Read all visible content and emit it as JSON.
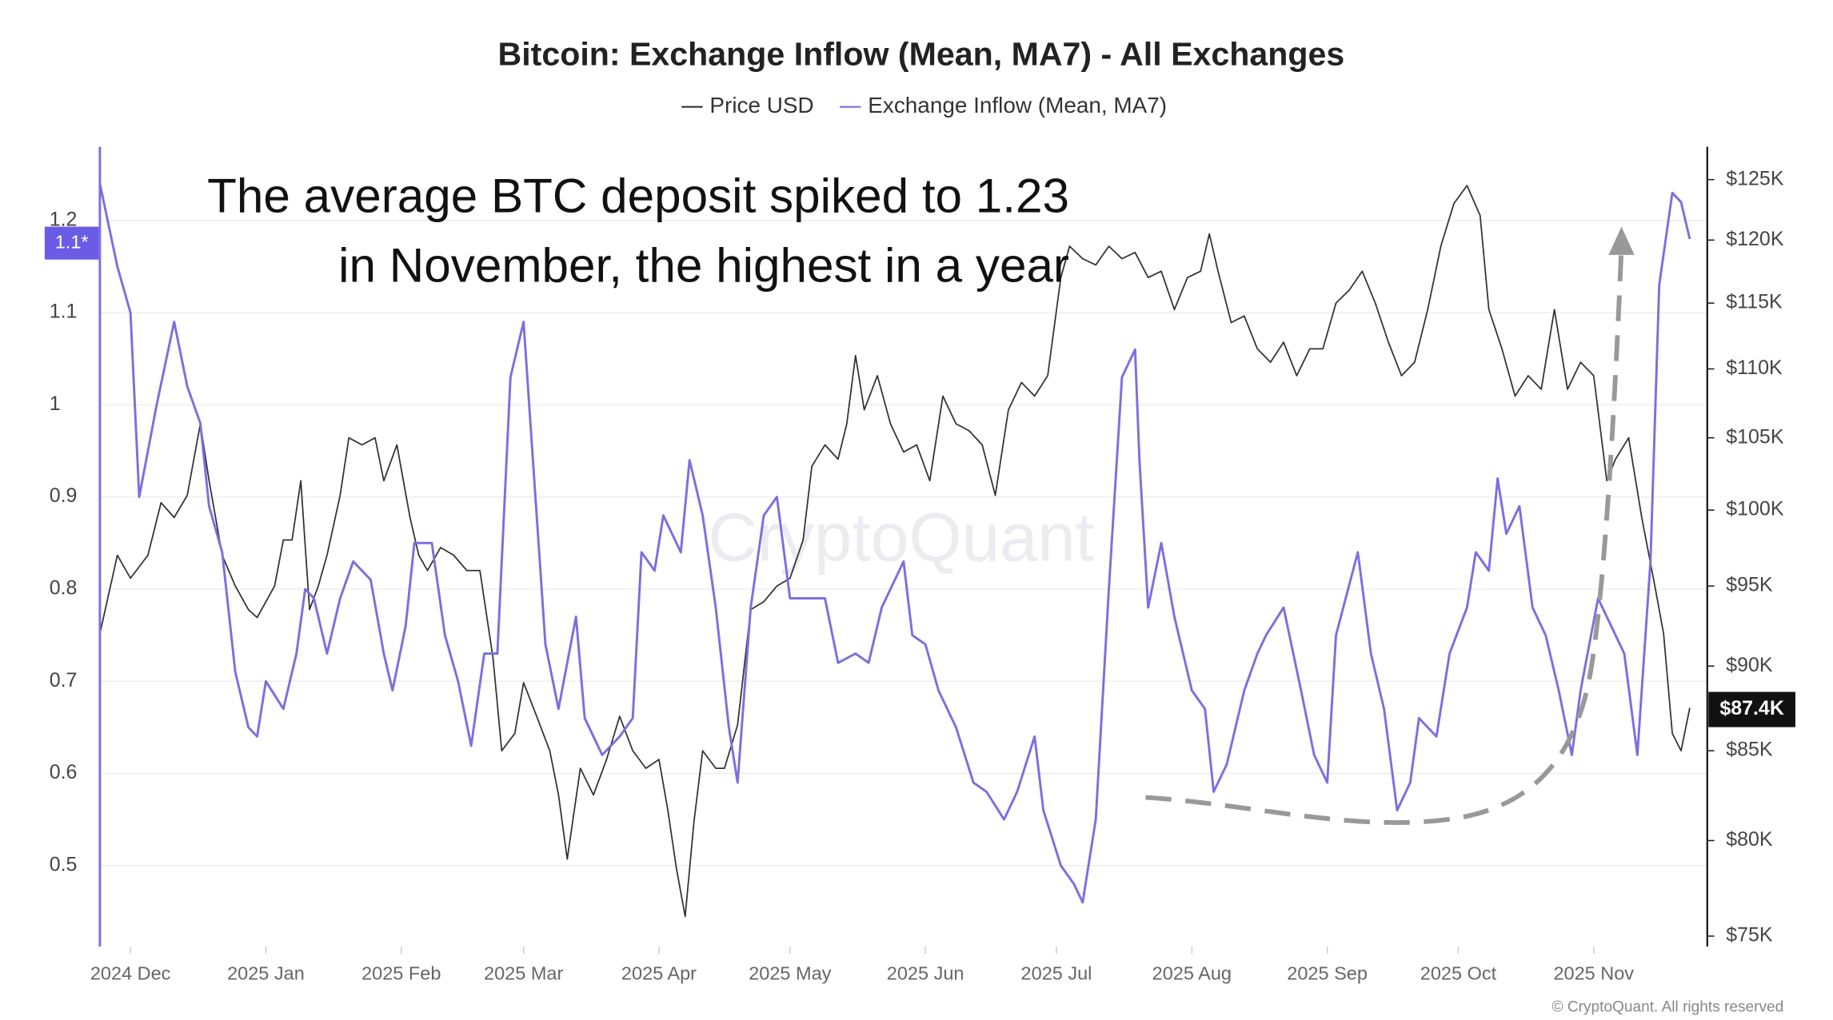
{
  "chart_data": {
    "type": "line",
    "title": "Bitcoin: Exchange Inflow (Mean, MA7) - All Exchanges",
    "annotation_lines": [
      "The average BTC deposit spiked to 1.23",
      "in November, the highest in a year"
    ],
    "watermark": "CryptoQuant",
    "credit": "© CryptoQuant. All rights reserved",
    "left_badge": "1.1*",
    "last_price_label": {
      "value": 87400,
      "label": "$87.4K"
    },
    "xlim": [
      0,
      368
    ],
    "xticks": [
      {
        "value": 7,
        "label": "2024 Dec"
      },
      {
        "value": 38,
        "label": "2025 Jan"
      },
      {
        "value": 69,
        "label": "2025 Feb"
      },
      {
        "value": 97,
        "label": "2025 Mar"
      },
      {
        "value": 128,
        "label": "2025 Apr"
      },
      {
        "value": 158,
        "label": "2025 May"
      },
      {
        "value": 189,
        "label": "2025 Jun"
      },
      {
        "value": 219,
        "label": "2025 Jul"
      },
      {
        "value": 250,
        "label": "2025 Aug"
      },
      {
        "value": 281,
        "label": "2025 Sep"
      },
      {
        "value": 311,
        "label": "2025 Oct"
      },
      {
        "value": 342,
        "label": "2025 Nov"
      }
    ],
    "ylim": [
      0.412,
      1.28
    ],
    "yticks": [
      0.5,
      0.6,
      0.7,
      0.8,
      0.9,
      1,
      1.1,
      1.2
    ],
    "y2lim": [
      74470,
      127800
    ],
    "y2log": true,
    "y2ticks": [
      {
        "value": 75000,
        "label": "$75K"
      },
      {
        "value": 80000,
        "label": "$80K"
      },
      {
        "value": 85000,
        "label": "$85K"
      },
      {
        "value": 90000,
        "label": "$90K"
      },
      {
        "value": 95000,
        "label": "$95K"
      },
      {
        "value": 100000,
        "label": "$100K"
      },
      {
        "value": 105000,
        "label": "$105K"
      },
      {
        "value": 110000,
        "label": "$110K"
      },
      {
        "value": 115000,
        "label": "$115K"
      },
      {
        "value": 120000,
        "label": "$120K"
      },
      {
        "value": 125000,
        "label": "$125K"
      }
    ],
    "grid": true,
    "series": [
      {
        "name": "Price USD",
        "color": "#333333",
        "axis": "y2",
        "x": [
          0,
          4,
          7,
          11,
          14,
          17,
          20,
          23,
          25,
          28,
          31,
          34,
          36,
          40,
          42,
          44,
          46,
          48,
          50,
          52,
          55,
          57,
          60,
          63,
          65,
          68,
          71,
          73,
          75,
          78,
          81,
          84,
          87,
          90,
          92,
          95,
          97,
          100,
          103,
          105,
          107,
          110,
          113,
          116,
          119,
          122,
          125,
          128,
          130,
          132,
          134,
          136,
          138,
          141,
          143,
          146,
          149,
          152,
          155,
          158,
          161,
          163,
          166,
          169,
          171,
          173,
          175,
          178,
          181,
          184,
          187,
          190,
          193,
          196,
          199,
          202,
          205,
          208,
          211,
          214,
          217,
          220,
          222,
          225,
          228,
          231,
          234,
          237,
          240,
          243,
          246,
          249,
          252,
          254,
          256,
          259,
          262,
          265,
          268,
          271,
          274,
          277,
          280,
          283,
          286,
          289,
          292,
          295,
          298,
          301,
          304,
          307,
          310,
          313,
          316,
          318,
          321,
          324,
          327,
          330,
          333,
          336,
          339,
          342,
          345,
          347,
          350,
          353,
          356,
          358,
          360,
          362,
          364
        ],
        "values": [
          92000,
          97000,
          95500,
          97000,
          100500,
          99500,
          101000,
          106000,
          102000,
          97000,
          95000,
          93500,
          93000,
          95000,
          98000,
          98000,
          102000,
          93500,
          95000,
          97000,
          101000,
          105000,
          104500,
          105000,
          102000,
          104500,
          99500,
          97000,
          96000,
          97500,
          97000,
          96000,
          96000,
          90500,
          85000,
          86000,
          89000,
          87000,
          85000,
          82500,
          79000,
          84000,
          82500,
          84500,
          87000,
          85000,
          84000,
          84500,
          81700,
          78500,
          76000,
          81000,
          85000,
          84000,
          84000,
          86500,
          93500,
          94000,
          95000,
          95500,
          98000,
          103000,
          104500,
          103500,
          106000,
          111000,
          107000,
          109500,
          106000,
          104000,
          104500,
          102000,
          108000,
          106000,
          105500,
          104500,
          101000,
          107000,
          109000,
          108000,
          109500,
          117000,
          119500,
          118500,
          118000,
          119500,
          118500,
          119000,
          117000,
          117500,
          114500,
          117000,
          117500,
          120500,
          117500,
          113500,
          114000,
          111500,
          110500,
          112000,
          109500,
          111500,
          111500,
          115000,
          116000,
          117500,
          115000,
          112000,
          109500,
          110500,
          114500,
          119500,
          123000,
          124500,
          122000,
          114500,
          111500,
          108000,
          109500,
          108500,
          114500,
          108500,
          110500,
          109500,
          102000,
          103500,
          105000,
          99500,
          95000,
          92000,
          86000,
          85000,
          87500
        ]
      },
      {
        "name": "Exchange Inflow (Mean, MA7)",
        "color": "#7b6fe0",
        "axis": "y",
        "x": [
          0,
          4,
          7,
          9,
          11,
          13,
          17,
          20,
          23,
          25,
          28,
          31,
          34,
          36,
          38,
          42,
          45,
          47,
          49,
          52,
          55,
          58,
          62,
          65,
          67,
          70,
          72,
          76,
          79,
          82,
          85,
          88,
          91,
          94,
          97,
          99,
          102,
          105,
          109,
          111,
          115,
          119,
          122,
          124,
          127,
          129,
          133,
          135,
          138,
          141,
          144,
          146,
          149,
          152,
          155,
          158,
          162,
          166,
          169,
          173,
          176,
          179,
          184,
          186,
          189,
          192,
          196,
          200,
          203,
          207,
          210,
          214,
          216,
          220,
          223,
          225,
          228,
          231,
          234,
          237,
          238,
          240,
          243,
          246,
          250,
          253,
          255,
          258,
          262,
          265,
          267,
          271,
          275,
          278,
          281,
          283,
          288,
          291,
          294,
          297,
          300,
          302,
          306,
          309,
          313,
          315,
          318,
          320,
          322,
          325,
          328,
          331,
          334,
          337,
          339,
          343,
          347,
          349,
          352,
          355,
          357,
          360,
          362,
          364
        ],
        "values": [
          1.24,
          1.15,
          1.1,
          0.9,
          0.95,
          1,
          1.09,
          1.02,
          0.98,
          0.89,
          0.84,
          0.71,
          0.65,
          0.64,
          0.7,
          0.67,
          0.73,
          0.8,
          0.79,
          0.73,
          0.79,
          0.83,
          0.81,
          0.73,
          0.69,
          0.76,
          0.85,
          0.85,
          0.75,
          0.7,
          0.63,
          0.73,
          0.73,
          1.03,
          1.09,
          0.95,
          0.74,
          0.67,
          0.77,
          0.66,
          0.62,
          0.64,
          0.66,
          0.84,
          0.82,
          0.88,
          0.84,
          0.94,
          0.88,
          0.78,
          0.65,
          0.59,
          0.78,
          0.88,
          0.9,
          0.79,
          0.79,
          0.79,
          0.72,
          0.73,
          0.72,
          0.78,
          0.83,
          0.75,
          0.74,
          0.69,
          0.65,
          0.59,
          0.58,
          0.55,
          0.58,
          0.64,
          0.56,
          0.5,
          0.48,
          0.46,
          0.55,
          0.8,
          1.03,
          1.06,
          0.94,
          0.78,
          0.85,
          0.77,
          0.69,
          0.67,
          0.58,
          0.61,
          0.69,
          0.73,
          0.75,
          0.78,
          0.69,
          0.62,
          0.59,
          0.75,
          0.84,
          0.73,
          0.67,
          0.56,
          0.59,
          0.66,
          0.64,
          0.73,
          0.78,
          0.84,
          0.82,
          0.92,
          0.86,
          0.89,
          0.78,
          0.75,
          0.69,
          0.62,
          0.69,
          0.79,
          0.75,
          0.73,
          0.62,
          0.83,
          1.13,
          1.23,
          1.22,
          1.18
        ]
      }
    ]
  }
}
